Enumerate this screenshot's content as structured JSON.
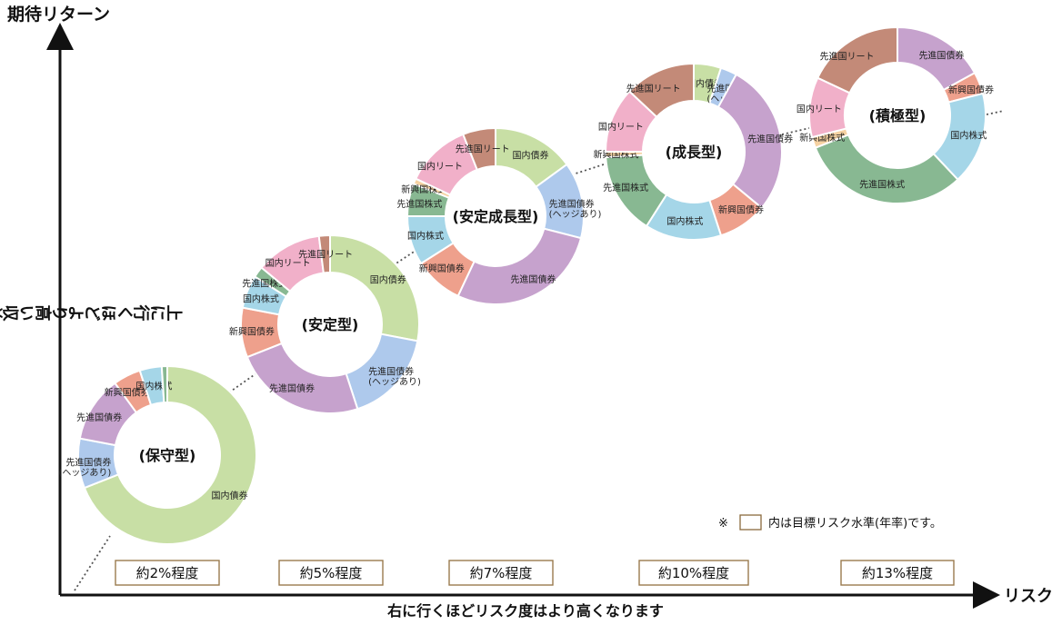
{
  "page": {
    "y_axis_title": "期待リターン",
    "y_axis_note": "上に行くほどより高い収益が期待できます",
    "x_axis_title": "リスク",
    "x_axis_note": "右に行くほどリスク度はより高くなります",
    "note_prefix": "※",
    "note_suffix": "内は目標リスク水準(年率)です。"
  },
  "colors": {
    "国内債券": "#c8dfa5",
    "先進国債券(ヘッジあり)": "#aec9ec",
    "先進国債券": "#c6a2cd",
    "新興国債券": "#eea08c",
    "国内株式": "#a5d6e8",
    "先進国株式": "#88b892",
    "新興国株式": "#f6d2a2",
    "国内リート": "#f1b0c9",
    "先進国リート": "#c38a78"
  },
  "chart_data": {
    "type": "pie",
    "variant": "donut",
    "axes": {
      "x_title": "リスク",
      "y_title": "期待リターン",
      "x_note": "右に行くほどリスク度はより高くなります",
      "y_note": "上に行くほどより高い収益が期待できます"
    },
    "legend": "none",
    "grid": false,
    "portfolios": [
      {
        "name": "(保守型)",
        "risk_label": "約2%程度",
        "slices": [
          {
            "label": "国内債券",
            "category": "国内債券",
            "value": 69
          },
          {
            "label": "先進国債券(ヘッジあり)",
            "category": "先進国債券(ヘッジあり)",
            "value": 9
          },
          {
            "label": "先進国債券",
            "category": "先進国債券",
            "value": 12
          },
          {
            "label": "新興国債券",
            "category": "新興国債券",
            "value": 5
          },
          {
            "label": "国内株式",
            "category": "国内株式",
            "value": 4
          },
          {
            "label": "",
            "category": "先進国株式",
            "value": 1
          }
        ]
      },
      {
        "name": "(安定型)",
        "risk_label": "約5%程度",
        "slices": [
          {
            "label": "国内債券",
            "category": "国内債券",
            "value": 28
          },
          {
            "label": "先進国債券(ヘッジあり)",
            "category": "先進国債券(ヘッジあり)",
            "value": 17
          },
          {
            "label": "先進国債券",
            "category": "先進国債券",
            "value": 24
          },
          {
            "label": "新興国債券",
            "category": "新興国債券",
            "value": 9
          },
          {
            "label": "国内株式",
            "category": "国内株式",
            "value": 6
          },
          {
            "label": "先進国株式",
            "category": "先進国株式",
            "value": 2
          },
          {
            "label": "国内リート",
            "category": "国内リート",
            "value": 12
          },
          {
            "label": "先進国リート",
            "category": "先進国リート",
            "value": 2
          }
        ]
      },
      {
        "name": "(安定成長型)",
        "risk_label": "約7%程度",
        "slices": [
          {
            "label": "国内債券",
            "category": "国内債券",
            "value": 15
          },
          {
            "label": "先進国債券(ヘッジあり)",
            "category": "先進国債券(ヘッジあり)",
            "value": 14
          },
          {
            "label": "先進国債券",
            "category": "先進国債券",
            "value": 28
          },
          {
            "label": "新興国債券",
            "category": "新興国債券",
            "value": 9
          },
          {
            "label": "国内株式",
            "category": "国内株式",
            "value": 9
          },
          {
            "label": "先進国株式",
            "category": "先進国株式",
            "value": 6
          },
          {
            "label": "新興国株式",
            "category": "新興国株式",
            "value": 1
          },
          {
            "label": "国内リート",
            "category": "国内リート",
            "value": 12
          },
          {
            "label": "先進国リート",
            "category": "先進国リート",
            "value": 6
          }
        ]
      },
      {
        "name": "(成長型)",
        "risk_label": "約10%程度",
        "slices": [
          {
            "label": "国内債券",
            "category": "国内債券",
            "value": 5
          },
          {
            "label": "先進国債券(ヘッジあり)",
            "category": "先進国債券(ヘッジあり)",
            "value": 3
          },
          {
            "label": "先進国債券",
            "category": "先進国債券",
            "value": 28
          },
          {
            "label": "新興国債券",
            "category": "新興国債券",
            "value": 9
          },
          {
            "label": "国内株式",
            "category": "国内株式",
            "value": 14
          },
          {
            "label": "先進国株式",
            "category": "先進国株式",
            "value": 15
          },
          {
            "label": "新興国株式",
            "category": "新興国株式",
            "value": 1
          },
          {
            "label": "国内リート",
            "category": "国内リート",
            "value": 12
          },
          {
            "label": "先進国リート",
            "category": "先進国リート",
            "value": 13
          }
        ]
      },
      {
        "name": "(積極型)",
        "risk_label": "約13%程度",
        "slices": [
          {
            "label": "先進国債券",
            "category": "先進国債券",
            "value": 17
          },
          {
            "label": "新興国債券",
            "category": "新興国債券",
            "value": 4
          },
          {
            "label": "国内株式",
            "category": "国内株式",
            "value": 17
          },
          {
            "label": "先進国株式",
            "category": "先進国株式",
            "value": 31
          },
          {
            "label": "新興国株式",
            "category": "新興国株式",
            "value": 2
          },
          {
            "label": "国内リート",
            "category": "国内リート",
            "value": 11
          },
          {
            "label": "先進国リート",
            "category": "先進国リート",
            "value": 18
          }
        ]
      }
    ]
  }
}
